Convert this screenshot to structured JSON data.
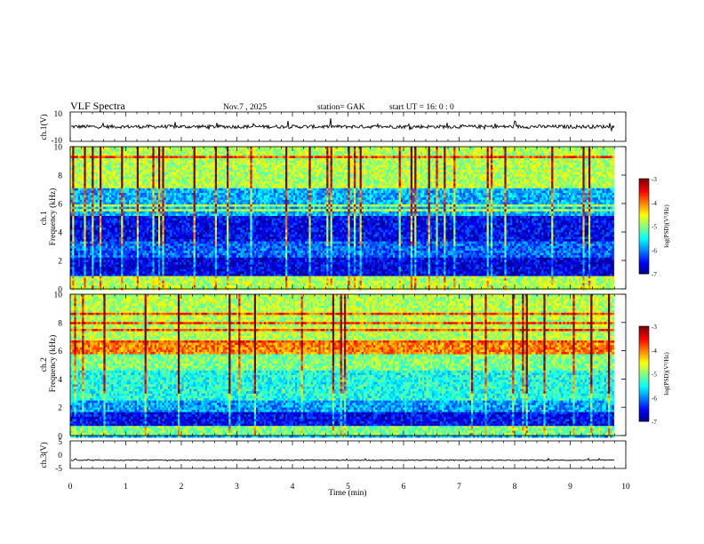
{
  "header": {
    "title": "VLF  Spectra",
    "date": "Nov.7  , 2025",
    "station": "station= GAK",
    "start_ut": "start  UT  =   16: 0  : 0"
  },
  "chart_data": [
    {
      "type": "line",
      "panel": "ch1-waveform",
      "ylabel": "ch.1(V)",
      "ylim": [
        -10,
        10
      ],
      "yticks": [
        "10",
        "-10"
      ],
      "xlim": [
        0,
        10
      ],
      "xdata_end": 9.8,
      "baseline": 0,
      "noise_amplitude": 1.2
    },
    {
      "type": "heatmap",
      "panel": "ch1-spectrogram",
      "ylabel": "ch.1\nFrequency (kHz)",
      "ylim": [
        0,
        10
      ],
      "yticks": [
        "0",
        "2",
        "4",
        "6",
        "8",
        "10"
      ],
      "xlim": [
        0,
        10
      ],
      "xdata_end": 9.8,
      "colorbar": {
        "label": "log(PSD)(V²/Hz)",
        "range": [
          -7,
          -3
        ],
        "ticks": [
          "-3",
          "-4",
          "-5",
          "-6",
          "-7"
        ]
      },
      "bands": [
        {
          "from": 0,
          "to": 0.9,
          "level": 0.55
        },
        {
          "from": 0.9,
          "to": 2.2,
          "level": 0.1
        },
        {
          "from": 2.2,
          "to": 3.4,
          "level": 0.22
        },
        {
          "from": 3.4,
          "to": 5.2,
          "level": 0.12
        },
        {
          "from": 5.2,
          "to": 7.0,
          "level": 0.3
        },
        {
          "from": 7.0,
          "to": 10,
          "level": 0.55
        }
      ]
    },
    {
      "type": "heatmap",
      "panel": "ch2-spectrogram",
      "ylabel": "ch.2\nFrequency (kHz)",
      "ylim": [
        0,
        10
      ],
      "yticks": [
        "0",
        "2",
        "4",
        "6",
        "8",
        "10"
      ],
      "xlim": [
        0,
        10
      ],
      "xdata_end": 9.8,
      "colorbar": {
        "label": "log(PSD)(V²/Hz)",
        "range": [
          -7,
          -3
        ],
        "ticks": [
          "-3",
          "-4",
          "-5",
          "-6",
          "-7"
        ]
      },
      "bands": [
        {
          "from": 0,
          "to": 0.6,
          "level": 0.5
        },
        {
          "from": 0.6,
          "to": 1.6,
          "level": 0.12
        },
        {
          "from": 1.6,
          "to": 2.4,
          "level": 0.28
        },
        {
          "from": 2.4,
          "to": 4.6,
          "level": 0.4
        },
        {
          "from": 4.6,
          "to": 5.8,
          "level": 0.5
        },
        {
          "from": 5.8,
          "to": 6.5,
          "level": 0.75
        },
        {
          "from": 6.5,
          "to": 10,
          "level": 0.55
        }
      ]
    },
    {
      "type": "line",
      "panel": "ch3-waveform",
      "ylabel": "ch.3(V)",
      "ylim": [
        -5,
        5
      ],
      "yticks": [
        "5",
        "0",
        "-5"
      ],
      "xlim": [
        0,
        10
      ],
      "xdata_end": 9.8,
      "baseline": -2,
      "xlabel": "Time  (min)",
      "xticks": [
        "0",
        "1",
        "2",
        "3",
        "4",
        "5",
        "6",
        "7",
        "8",
        "9",
        "10"
      ]
    }
  ]
}
